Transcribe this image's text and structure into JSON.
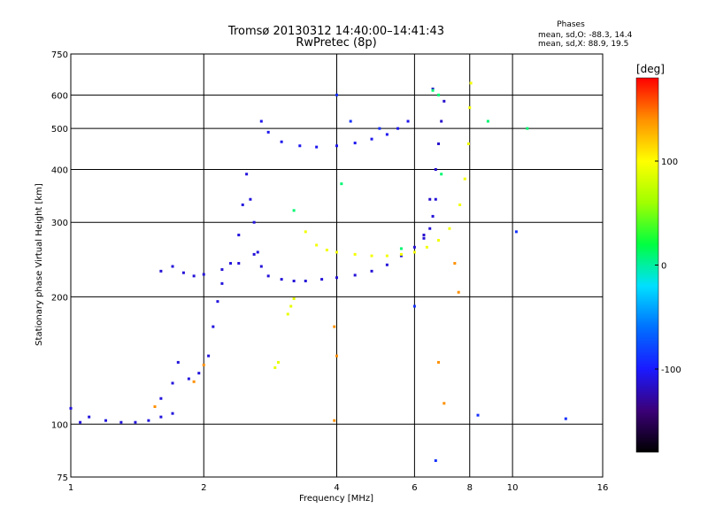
{
  "header": {
    "title": "Tromsø 20130312 14:40:00–14:41:43",
    "subtitle": "RwPretec (8p)"
  },
  "stats": {
    "heading": "Phases",
    "line_o": "mean, sd,O: -88.3, 14.4",
    "line_x": "mean, sd,X:  88.9, 19.5"
  },
  "chart_data": {
    "type": "scatter",
    "title": "Tromsø 20130312 14:40:00–14:41:43",
    "subtitle": "RwPretec (8p)",
    "xlabel": "Frequency [MHz]",
    "ylabel": "Stationary phase Virtual Height [km]",
    "x_scale": "log",
    "y_scale": "log",
    "xlim": [
      1,
      16
    ],
    "ylim": [
      75,
      750
    ],
    "x_ticks": [
      1,
      2,
      4,
      6,
      8,
      10,
      16
    ],
    "x_tick_labels": [
      "1",
      "2",
      "4",
      "6",
      "8",
      "10",
      "16"
    ],
    "y_ticks": [
      75,
      100,
      200,
      300,
      400,
      500,
      600,
      750
    ],
    "y_tick_labels": [
      "75",
      "100",
      "200",
      "300",
      "400",
      "500",
      "600",
      "750"
    ],
    "grid": true,
    "colorbar": {
      "label": "[deg]",
      "range": [
        -180,
        180
      ],
      "ticks": [
        100,
        0,
        -100
      ],
      "tick_labels": [
        "100",
        "0",
        "-100"
      ],
      "stops": [
        "#000000",
        "#3b0078",
        "#1a1aff",
        "#0070ff",
        "#00e0ff",
        "#00ff40",
        "#a0ff00",
        "#ffff00",
        "#ff9000",
        "#ff0000"
      ]
    },
    "series": [
      {
        "phase": -110,
        "points": [
          [
            1.0,
            109
          ],
          [
            1.05,
            101
          ],
          [
            1.1,
            104
          ],
          [
            1.2,
            102
          ],
          [
            1.3,
            101
          ],
          [
            1.4,
            101
          ],
          [
            1.5,
            102
          ],
          [
            1.6,
            104
          ],
          [
            1.7,
            106
          ],
          [
            1.6,
            115
          ],
          [
            1.7,
            125
          ],
          [
            1.75,
            140
          ],
          [
            1.85,
            128
          ],
          [
            1.95,
            132
          ],
          [
            2.05,
            145
          ],
          [
            2.1,
            170
          ],
          [
            2.15,
            195
          ],
          [
            2.2,
            215
          ],
          [
            2.3,
            240
          ],
          [
            2.4,
            280
          ],
          [
            2.45,
            330
          ],
          [
            2.5,
            390
          ],
          [
            2.55,
            340
          ],
          [
            2.6,
            300
          ],
          [
            2.65,
            255
          ]
        ]
      },
      {
        "phase": -112,
        "points": [
          [
            1.6,
            230
          ],
          [
            1.7,
            236
          ],
          [
            1.8,
            228
          ],
          [
            1.9,
            224
          ],
          [
            2.0,
            226
          ],
          [
            2.2,
            232
          ],
          [
            2.4,
            240
          ],
          [
            2.6,
            252
          ],
          [
            2.7,
            236
          ],
          [
            2.8,
            224
          ],
          [
            3.0,
            220
          ],
          [
            3.2,
            218
          ],
          [
            3.4,
            218
          ],
          [
            3.7,
            220
          ],
          [
            4.0,
            222
          ],
          [
            4.4,
            225
          ],
          [
            4.8,
            230
          ],
          [
            5.2,
            238
          ],
          [
            5.6,
            250
          ],
          [
            6.0,
            262
          ],
          [
            6.3,
            275
          ],
          [
            6.5,
            290
          ],
          [
            6.6,
            310
          ],
          [
            6.7,
            340
          ]
        ]
      },
      {
        "phase": -105,
        "points": [
          [
            2.7,
            520
          ],
          [
            2.8,
            490
          ],
          [
            3.0,
            465
          ],
          [
            3.3,
            455
          ],
          [
            3.6,
            452
          ],
          [
            4.0,
            455
          ],
          [
            4.4,
            462
          ],
          [
            4.8,
            472
          ],
          [
            5.2,
            484
          ],
          [
            5.5,
            500
          ],
          [
            5.8,
            520
          ]
        ]
      },
      {
        "phase": -115,
        "points": [
          [
            6.3,
            280
          ],
          [
            6.5,
            340
          ],
          [
            6.7,
            400
          ],
          [
            6.8,
            460
          ],
          [
            6.9,
            520
          ],
          [
            7.0,
            580
          ],
          [
            6.6,
            620
          ]
        ]
      },
      {
        "phase": 95,
        "points": [
          [
            3.4,
            285
          ],
          [
            3.6,
            265
          ],
          [
            3.8,
            258
          ],
          [
            4.0,
            255
          ],
          [
            4.4,
            252
          ],
          [
            4.8,
            250
          ],
          [
            5.2,
            250
          ],
          [
            5.6,
            252
          ],
          [
            6.0,
            255
          ],
          [
            6.4,
            262
          ],
          [
            6.8,
            272
          ],
          [
            7.2,
            290
          ],
          [
            7.6,
            330
          ],
          [
            7.8,
            380
          ],
          [
            7.95,
            460
          ],
          [
            8.0,
            560
          ],
          [
            8.05,
            640
          ]
        ]
      },
      {
        "phase": 90,
        "points": [
          [
            3.1,
            182
          ],
          [
            3.15,
            190
          ],
          [
            3.2,
            198
          ],
          [
            2.95,
            140
          ],
          [
            2.9,
            136
          ]
        ]
      },
      {
        "phase": 140,
        "points": [
          [
            1.55,
            110
          ],
          [
            1.9,
            126
          ],
          [
            2.0,
            138
          ],
          [
            3.95,
            170
          ],
          [
            4.0,
            145
          ],
          [
            3.95,
            102
          ],
          [
            6.8,
            140
          ],
          [
            7.0,
            112
          ],
          [
            7.55,
            205
          ],
          [
            7.4,
            240
          ]
        ]
      },
      {
        "phase": 10,
        "points": [
          [
            6.6,
            615
          ],
          [
            6.8,
            600
          ],
          [
            8.8,
            520
          ],
          [
            10.8,
            500
          ],
          [
            6.9,
            390
          ],
          [
            4.1,
            370
          ],
          [
            3.2,
            320
          ],
          [
            5.6,
            260
          ]
        ]
      },
      {
        "phase": -90,
        "points": [
          [
            6.0,
            190
          ],
          [
            6.7,
            82
          ],
          [
            8.35,
            105
          ],
          [
            10.2,
            285
          ],
          [
            13.2,
            103
          ],
          [
            4.0,
            600
          ],
          [
            4.3,
            520
          ],
          [
            5.0,
            500
          ]
        ]
      }
    ]
  }
}
